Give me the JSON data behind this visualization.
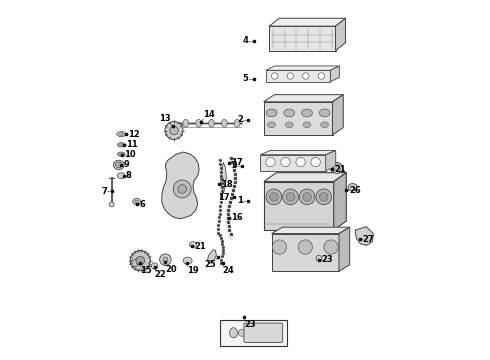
{
  "bg_color": "#ffffff",
  "fig_width": 4.9,
  "fig_height": 3.6,
  "dpi": 100,
  "label_fontsize": 6.0,
  "label_color": "#000000",
  "line_color": "#404040",
  "callouts": [
    {
      "num": "4",
      "dot": [
        0.524,
        0.888
      ],
      "txt": [
        0.51,
        0.888
      ]
    },
    {
      "num": "5",
      "dot": [
        0.524,
        0.782
      ],
      "txt": [
        0.51,
        0.782
      ]
    },
    {
      "num": "2",
      "dot": [
        0.508,
        0.668
      ],
      "txt": [
        0.494,
        0.668
      ]
    },
    {
      "num": "3",
      "dot": [
        0.492,
        0.54
      ],
      "txt": [
        0.478,
        0.54
      ]
    },
    {
      "num": "21",
      "dot": [
        0.742,
        0.53
      ],
      "txt": [
        0.75,
        0.53
      ]
    },
    {
      "num": "26",
      "dot": [
        0.782,
        0.472
      ],
      "txt": [
        0.79,
        0.472
      ]
    },
    {
      "num": "1",
      "dot": [
        0.508,
        0.442
      ],
      "txt": [
        0.494,
        0.442
      ]
    },
    {
      "num": "17",
      "dot": [
        0.468,
        0.452
      ],
      "txt": [
        0.458,
        0.452
      ]
    },
    {
      "num": "27",
      "dot": [
        0.82,
        0.335
      ],
      "txt": [
        0.828,
        0.335
      ]
    },
    {
      "num": "23",
      "dot": [
        0.706,
        0.278
      ],
      "txt": [
        0.714,
        0.278
      ]
    },
    {
      "num": "23",
      "dot": [
        0.498,
        0.118
      ],
      "txt": [
        0.498,
        0.11
      ]
    },
    {
      "num": "13",
      "dot": [
        0.298,
        0.65
      ],
      "txt": [
        0.292,
        0.658
      ]
    },
    {
      "num": "14",
      "dot": [
        0.378,
        0.662
      ],
      "txt": [
        0.384,
        0.67
      ]
    },
    {
      "num": "17",
      "dot": [
        0.454,
        0.548
      ],
      "txt": [
        0.46,
        0.548
      ]
    },
    {
      "num": "18",
      "dot": [
        0.428,
        0.488
      ],
      "txt": [
        0.434,
        0.488
      ]
    },
    {
      "num": "16",
      "dot": [
        0.454,
        0.395
      ],
      "txt": [
        0.46,
        0.395
      ]
    },
    {
      "num": "25",
      "dot": [
        0.425,
        0.285
      ],
      "txt": [
        0.42,
        0.278
      ]
    },
    {
      "num": "24",
      "dot": [
        0.438,
        0.268
      ],
      "txt": [
        0.438,
        0.26
      ]
    },
    {
      "num": "21",
      "dot": [
        0.352,
        0.315
      ],
      "txt": [
        0.358,
        0.315
      ]
    },
    {
      "num": "19",
      "dot": [
        0.338,
        0.268
      ],
      "txt": [
        0.338,
        0.26
      ]
    },
    {
      "num": "20",
      "dot": [
        0.278,
        0.272
      ],
      "txt": [
        0.278,
        0.264
      ]
    },
    {
      "num": "22",
      "dot": [
        0.248,
        0.258
      ],
      "txt": [
        0.248,
        0.25
      ]
    },
    {
      "num": "15",
      "dot": [
        0.208,
        0.268
      ],
      "txt": [
        0.208,
        0.26
      ]
    },
    {
      "num": "12",
      "dot": [
        0.168,
        0.628
      ],
      "txt": [
        0.174,
        0.628
      ]
    },
    {
      "num": "11",
      "dot": [
        0.162,
        0.598
      ],
      "txt": [
        0.168,
        0.598
      ]
    },
    {
      "num": "10",
      "dot": [
        0.158,
        0.57
      ],
      "txt": [
        0.164,
        0.57
      ]
    },
    {
      "num": "9",
      "dot": [
        0.155,
        0.542
      ],
      "txt": [
        0.161,
        0.542
      ]
    },
    {
      "num": "8",
      "dot": [
        0.162,
        0.512
      ],
      "txt": [
        0.168,
        0.512
      ]
    },
    {
      "num": "7",
      "dot": [
        0.128,
        0.468
      ],
      "txt": [
        0.115,
        0.468
      ]
    },
    {
      "num": "6",
      "dot": [
        0.198,
        0.432
      ],
      "txt": [
        0.205,
        0.432
      ]
    }
  ]
}
